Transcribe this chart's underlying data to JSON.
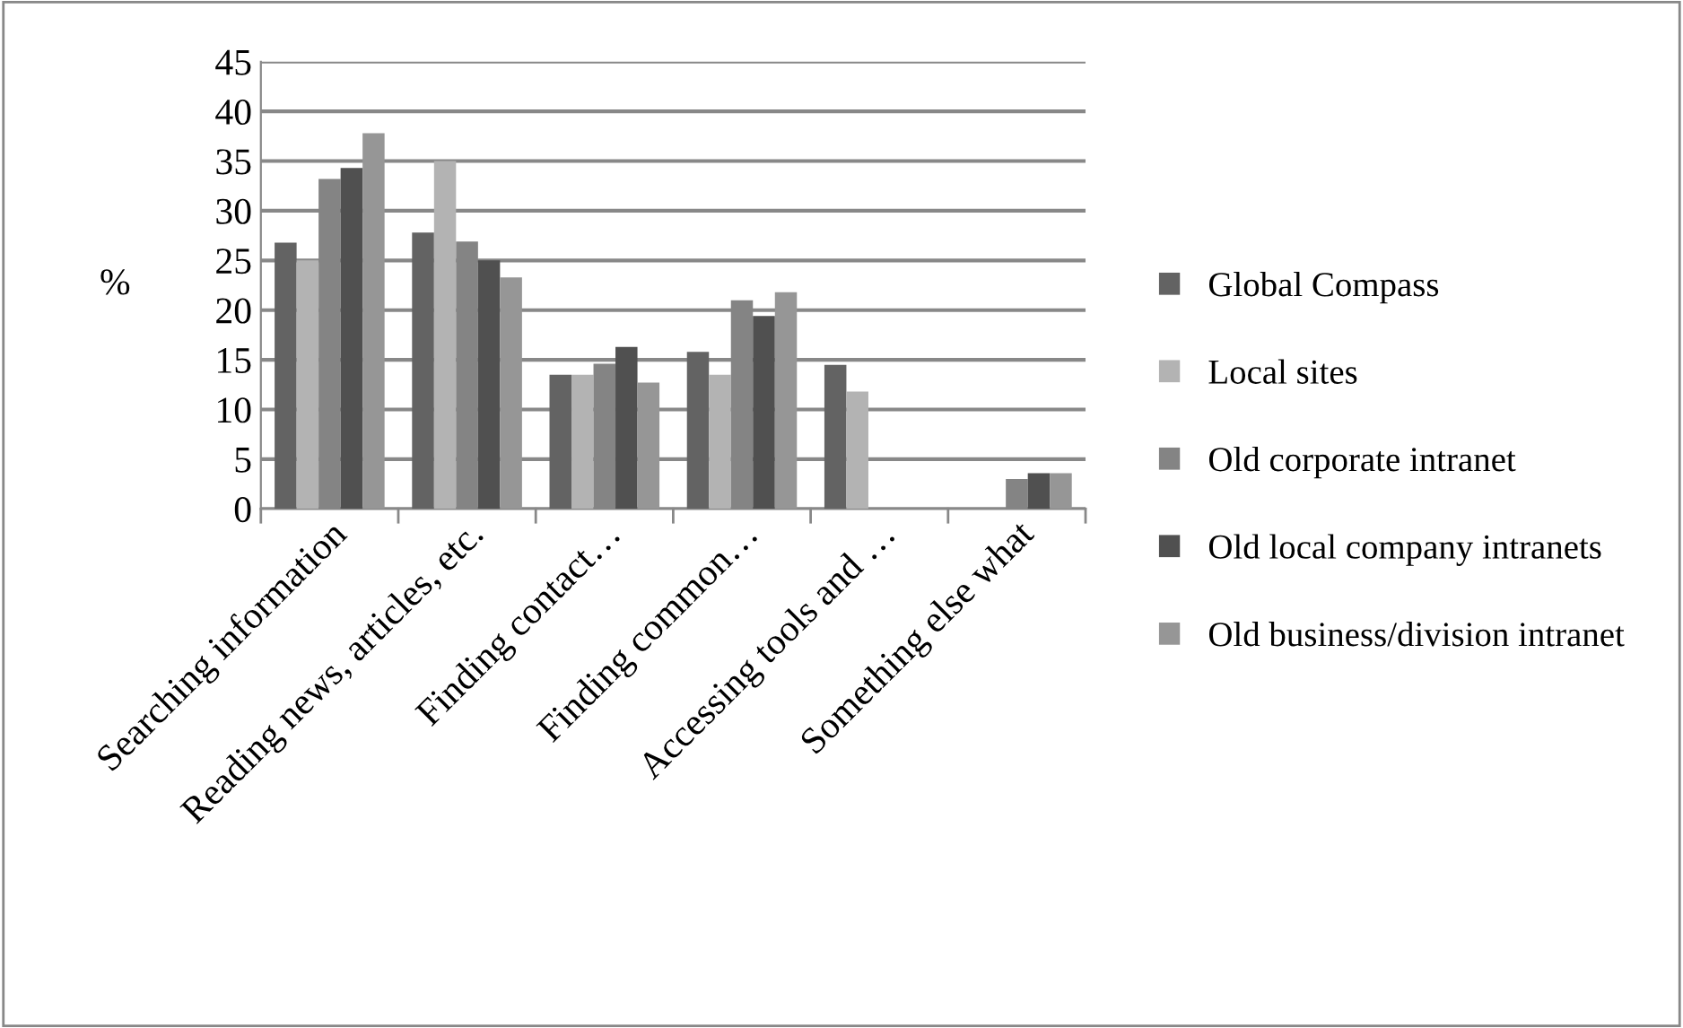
{
  "chart_data": {
    "type": "bar",
    "ylabel": "%",
    "categories": [
      "Searching information",
      "Reading news, articles, etc.",
      "Finding contact…",
      "Finding common…",
      "Accessing tools and …",
      "Something else what"
    ],
    "series": [
      {
        "name": "Global Compass",
        "color": "#636363",
        "values": [
          26.8,
          27.8,
          13.5,
          15.8,
          14.5,
          null
        ]
      },
      {
        "name": "Local sites",
        "color": "#b3b3b3",
        "values": [
          25,
          35,
          13.5,
          13.5,
          11.8,
          null
        ]
      },
      {
        "name": "Old corporate intranet",
        "color": "#848484",
        "values": [
          33.2,
          26.9,
          14.6,
          21.0,
          null,
          3.0
        ]
      },
      {
        "name": "Old local company intranets",
        "color": "#505050",
        "values": [
          34.3,
          25,
          16.3,
          19.4,
          null,
          3.6
        ]
      },
      {
        "name": "Old business/division intranet",
        "color": "#969696",
        "values": [
          37.8,
          23.3,
          12.7,
          21.8,
          null,
          3.6
        ]
      }
    ],
    "ylim": [
      0,
      45
    ],
    "yticks": [
      0,
      5,
      10,
      15,
      20,
      25,
      30,
      35,
      40,
      45
    ],
    "grid": "y",
    "legend": "right"
  }
}
